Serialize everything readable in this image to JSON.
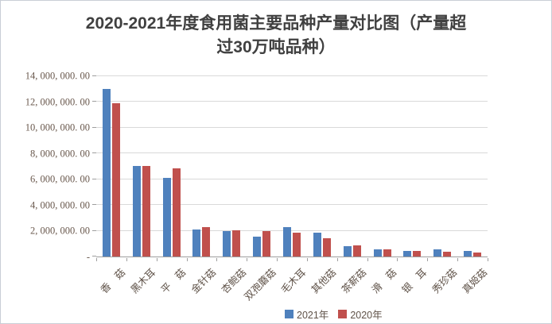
{
  "title_lines": [
    "2020-2021年度食用菌主要品种产量对比图（产量超",
    "过30万吨品种）"
  ],
  "colors": {
    "series_2021": "#4F81BD",
    "series_2020": "#C0504D",
    "gridline": "#D9D9D9",
    "axis_line": "#9E9E9E",
    "title_text": "#404040",
    "axis_text": "#6A594E"
  },
  "chart_data": {
    "type": "bar",
    "title": "2020-2021年度食用菌主要品种产量对比图（产量超过30万吨品种）",
    "categories": [
      "香　菇",
      "黑木耳",
      "平　菇",
      "金针菇",
      "杏鲍菇",
      "双孢蘑菇",
      "毛木耳",
      "其他菇",
      "茶薪菇",
      "滑　菇",
      "银　耳",
      "秀珍菇",
      "真姬菇"
    ],
    "series": [
      {
        "name": "2021年",
        "color": "#4F81BD",
        "values": [
          13000000,
          7050000,
          6100000,
          2120000,
          1980000,
          1560000,
          2260000,
          1850000,
          830000,
          560000,
          430000,
          560000,
          460000
        ]
      },
      {
        "name": "2020年",
        "color": "#C0504D",
        "values": [
          11900000,
          7060000,
          6850000,
          2260000,
          2060000,
          2000000,
          1850000,
          1400000,
          870000,
          530000,
          440000,
          360000,
          320000
        ]
      }
    ],
    "ylabel": "",
    "xlabel": "",
    "ylim": [
      0,
      14000000
    ],
    "ytick_step": 2000000,
    "ytick_labels": [
      "-",
      "2, 000, 000. 00",
      "4, 000, 000. 00",
      "6, 000, 000. 00",
      "8, 000, 000. 00",
      "10, 000, 000. 00",
      "12, 000, 000. 00",
      "14, 000, 000. 00"
    ],
    "grid": true,
    "legend_position": "bottom"
  }
}
